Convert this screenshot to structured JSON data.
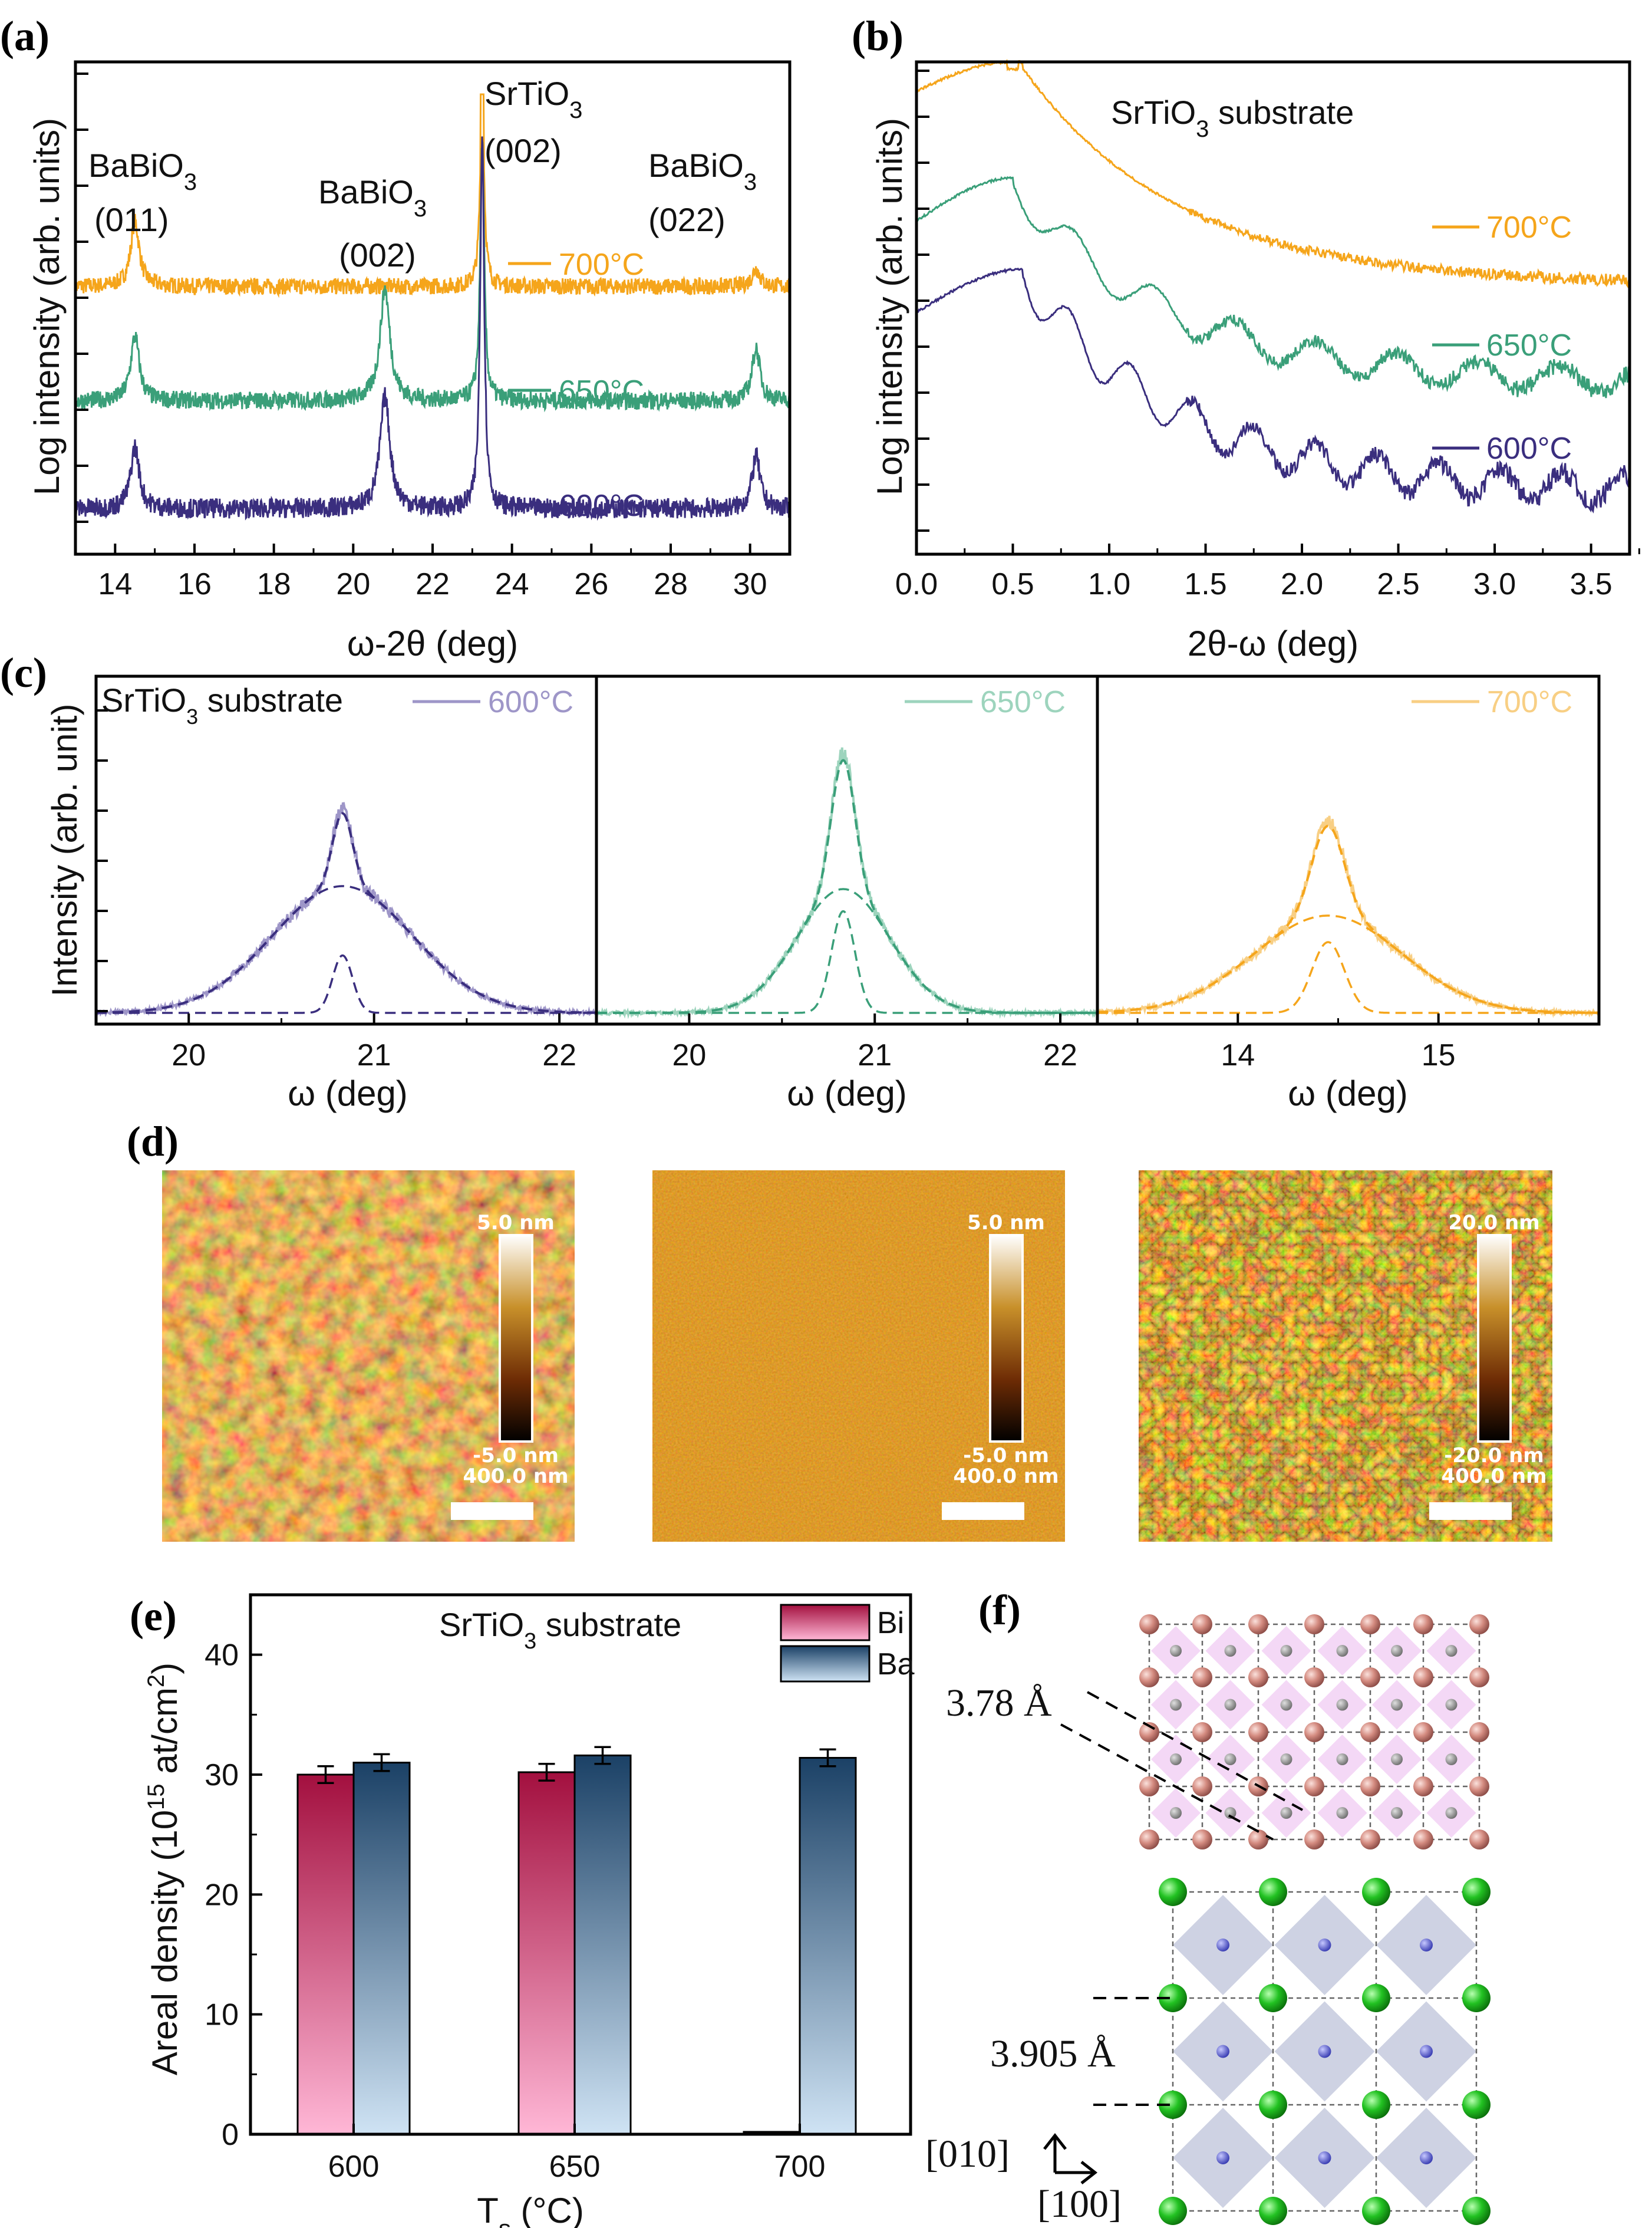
{
  "colors": {
    "c700": "#f5a51b",
    "c650": "#3a9f79",
    "c600": "#3a2e7e",
    "bi": "#b0154c",
    "ba": "#1e4a73"
  },
  "panels": {
    "a": "(a)",
    "b": "(b)",
    "c": "(c)",
    "d": "(d)",
    "e": "(e)",
    "f": "(f)"
  },
  "chart_data": [
    {
      "id": "a",
      "type": "line",
      "title": "",
      "xlabel": "ω-2θ (deg)",
      "ylabel": "Log intensity (arb. units)",
      "xlim": [
        13,
        31
      ],
      "xticks": [
        "14",
        "16",
        "18",
        "20",
        "22",
        "24",
        "26",
        "28",
        "30"
      ],
      "series": [
        {
          "name": "700°C",
          "label": "700°C",
          "color": "#f5a51b",
          "peaks": [
            [
              14.5,
              0.6
            ],
            [
              23.25,
              1.0
            ],
            [
              30.1,
              0.15
            ]
          ]
        },
        {
          "name": "650°C",
          "label": "650°C",
          "color": "#3a9f79",
          "peaks": [
            [
              14.55,
              0.7
            ],
            [
              20.8,
              1.0
            ],
            [
              23.25,
              1.0
            ],
            [
              30.15,
              0.7
            ]
          ]
        },
        {
          "name": "600°C",
          "label": "600°C",
          "color": "#3a2e7e",
          "peaks": [
            [
              14.5,
              0.7
            ],
            [
              20.8,
              1.0
            ],
            [
              23.25,
              1.0
            ],
            [
              30.15,
              0.7
            ]
          ]
        }
      ],
      "annotations": [
        {
          "text": "BaBiO",
          "sub": "3",
          "line2": "(011)"
        },
        {
          "text": "BaBiO",
          "sub": "3",
          "line2": "(002)"
        },
        {
          "text": "SrTiO",
          "sub": "3",
          "line2": "(002)"
        },
        {
          "text": "BaBiO",
          "sub": "3",
          "line2": "(022)"
        }
      ]
    },
    {
      "id": "b",
      "type": "line",
      "xlabel": "2θ-ω (deg)",
      "ylabel": "Log intensity (arb. units)",
      "xlim": [
        0,
        3.7
      ],
      "xticks": [
        "0.0",
        "0.5",
        "1.0",
        "1.5",
        "2.0",
        "2.5",
        "3.0",
        "3.5"
      ],
      "annotation": {
        "text": "SrTiO",
        "sub": "3",
        "rest": " substrate"
      },
      "series": [
        {
          "name": "700°C",
          "label": "700°C",
          "color": "#f5a51b"
        },
        {
          "name": "650°C",
          "label": "650°C",
          "color": "#3a9f79"
        },
        {
          "name": "600°C",
          "label": "600°C",
          "color": "#3a2e7e"
        }
      ]
    },
    {
      "id": "c",
      "type": "line",
      "ylabel": "Intensity (arb. unit)",
      "annotation": {
        "text": "SrTiO",
        "sub": "3",
        "rest": " substrate"
      },
      "panels": [
        {
          "name": "600°C",
          "label": "600°C",
          "color": "#3a2e7e",
          "light": "#9e96c8",
          "xlim": [
            19.5,
            22.2
          ],
          "xticks": [
            "20",
            "21",
            "22"
          ],
          "xticksv": [
            20,
            21,
            22
          ],
          "center": 20.83,
          "xlabel": "ω (deg)"
        },
        {
          "name": "650°C",
          "label": "650°C",
          "color": "#3a9f79",
          "light": "#9dd4bd",
          "xlim": [
            19.5,
            22.2
          ],
          "xticks": [
            "20",
            "21",
            "22"
          ],
          "xticksv": [
            20,
            21,
            22
          ],
          "center": 20.83,
          "xlabel": "ω (deg)"
        },
        {
          "name": "700°C",
          "label": "700°C",
          "color": "#f5a51b",
          "light": "#f8cf84",
          "xlim": [
            13.3,
            15.8
          ],
          "xticks": [
            "14",
            "15"
          ],
          "xticksv": [
            14,
            15
          ],
          "center": 14.45,
          "xlabel": "ω (deg)"
        }
      ]
    },
    {
      "id": "e",
      "type": "bar",
      "xlabel": "T",
      "xlabel_sub": "s",
      "xlabel_rest": " (°C)",
      "ylabel": "Areal density (10",
      "ylabel_sup": "15",
      "ylabel_rest": " at/cm",
      "ylabel_sup2": "2",
      "ylabel_end": ")",
      "ylim": [
        0,
        45
      ],
      "yticks": [
        "0",
        "10",
        "20",
        "30",
        "40"
      ],
      "categories": [
        "600",
        "650",
        "700"
      ],
      "annotation": {
        "text": "SrTiO",
        "sub": "3",
        "rest": " substrate"
      },
      "series": [
        {
          "name": "Bi",
          "values": [
            30.0,
            30.2,
            0.2
          ],
          "errors": [
            0.7,
            0.7,
            0.0
          ]
        },
        {
          "name": "Ba",
          "values": [
            31.0,
            31.6,
            31.4
          ],
          "errors": [
            0.7,
            0.7,
            0.7
          ]
        }
      ]
    }
  ],
  "afm": [
    {
      "scale_top": "5.0 nm",
      "scale_bottom": "-5.0 nm",
      "bar": "400.0 nm"
    },
    {
      "scale_top": "5.0 nm",
      "scale_bottom": "-5.0 nm",
      "bar": "400.0 nm"
    },
    {
      "scale_top": "20.0 nm",
      "scale_bottom": "-20.0 nm",
      "bar": "400.0 nm"
    }
  ],
  "structure": {
    "a_top": "3.78 Å",
    "a_bottom": "3.905 Å",
    "dir_up": "[010]",
    "dir_right": "[100]"
  }
}
